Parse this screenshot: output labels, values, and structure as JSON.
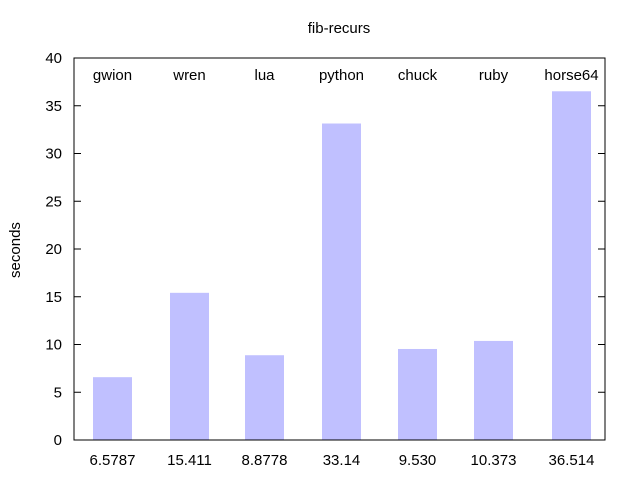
{
  "chart_data": {
    "type": "bar",
    "title": "fib-recurs",
    "xlabel": "",
    "ylabel": "seconds",
    "ylim": [
      0,
      40
    ],
    "yticks": [
      0,
      5,
      10,
      15,
      20,
      25,
      30,
      35,
      40
    ],
    "grid": false,
    "categories": [
      "gwion",
      "wren",
      "lua",
      "python",
      "chuck",
      "ruby",
      "horse64"
    ],
    "values": [
      6.5787,
      15.411,
      8.8778,
      33.14,
      9.53,
      10.373,
      36.514
    ],
    "value_labels": [
      "6.5787",
      "15.411",
      "8.8778",
      "33.14",
      "9.530",
      "10.373",
      "36.514"
    ],
    "category_label_position": "top",
    "value_label_position": "bottom",
    "bar_color": "#c0c0ff",
    "axis_color": "#000000"
  }
}
